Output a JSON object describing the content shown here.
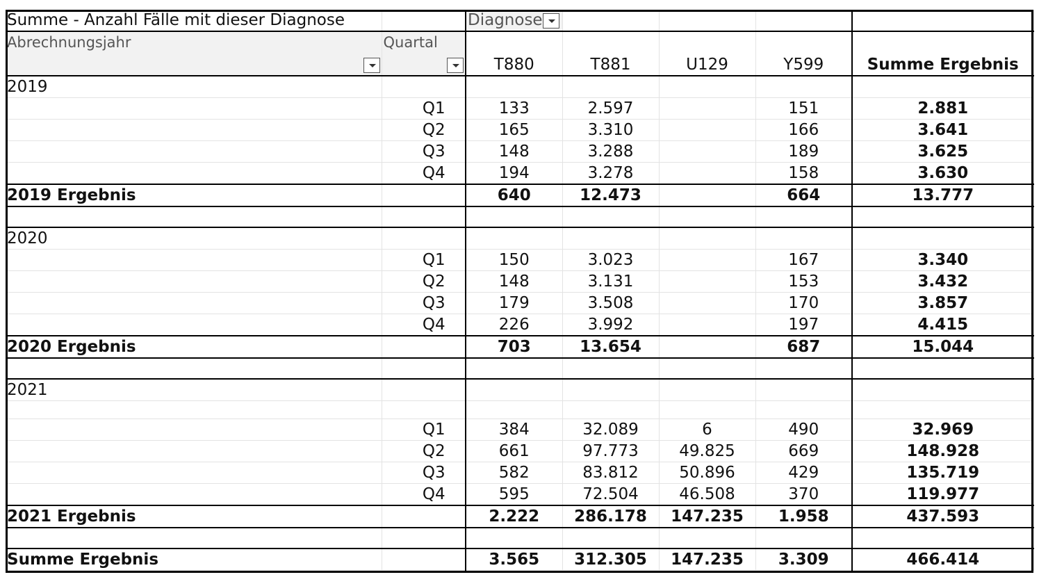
{
  "pivot": {
    "data_field_label": "Summe - Anzahl Fälle mit dieser Diagnose",
    "column_field_label": "Diagnose",
    "row_field_1": "Abrechnungsjahr",
    "row_field_2": "Quartal",
    "columns": [
      "T880",
      "T881",
      "U129",
      "Y599"
    ],
    "total_column_label": "Summe Ergebnis",
    "groups": [
      {
        "year": "2019",
        "rows": [
          {
            "q": "Q1",
            "v": [
              "133",
              "2.597",
              "",
              "151"
            ],
            "t": "2.881"
          },
          {
            "q": "Q2",
            "v": [
              "165",
              "3.310",
              "",
              "166"
            ],
            "t": "3.641"
          },
          {
            "q": "Q3",
            "v": [
              "148",
              "3.288",
              "",
              "189"
            ],
            "t": "3.625"
          },
          {
            "q": "Q4",
            "v": [
              "194",
              "3.278",
              "",
              "158"
            ],
            "t": "3.630"
          }
        ],
        "subtotal_label": "2019 Ergebnis",
        "subtotal": [
          "640",
          "12.473",
          "",
          "664"
        ],
        "subtotal_total": "13.777"
      },
      {
        "year": "2020",
        "rows": [
          {
            "q": "Q1",
            "v": [
              "150",
              "3.023",
              "",
              "167"
            ],
            "t": "3.340"
          },
          {
            "q": "Q2",
            "v": [
              "148",
              "3.131",
              "",
              "153"
            ],
            "t": "3.432"
          },
          {
            "q": "Q3",
            "v": [
              "179",
              "3.508",
              "",
              "170"
            ],
            "t": "3.857"
          },
          {
            "q": "Q4",
            "v": [
              "226",
              "3.992",
              "",
              "197"
            ],
            "t": "4.415"
          }
        ],
        "subtotal_label": "2020 Ergebnis",
        "subtotal": [
          "703",
          "13.654",
          "",
          "687"
        ],
        "subtotal_total": "15.044"
      },
      {
        "year": "2021",
        "rows": [
          {
            "q": "Q1",
            "v": [
              "384",
              "32.089",
              "6",
              "490"
            ],
            "t": "32.969"
          },
          {
            "q": "Q2",
            "v": [
              "661",
              "97.773",
              "49.825",
              "669"
            ],
            "t": "148.928"
          },
          {
            "q": "Q3",
            "v": [
              "582",
              "83.812",
              "50.896",
              "429"
            ],
            "t": "135.719"
          },
          {
            "q": "Q4",
            "v": [
              "595",
              "72.504",
              "46.508",
              "370"
            ],
            "t": "119.977"
          }
        ],
        "subtotal_label": "2021 Ergebnis",
        "subtotal": [
          "2.222",
          "286.178",
          "147.235",
          "1.958"
        ],
        "subtotal_total": "437.593"
      }
    ],
    "grand_label": "Summe Ergebnis",
    "grand": [
      "3.565",
      "312.305",
      "147.235",
      "3.309"
    ],
    "grand_total": "466.414"
  }
}
